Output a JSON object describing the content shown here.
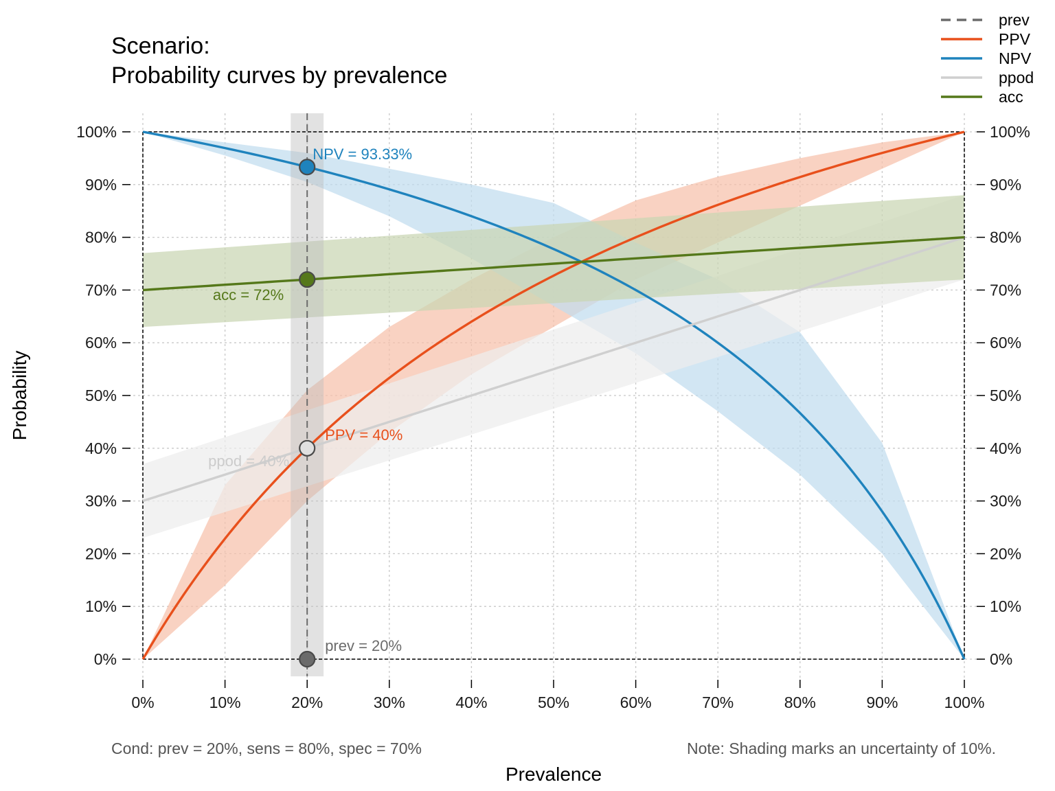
{
  "chart_data": {
    "type": "line",
    "title": "Scenario:",
    "subtitle": "Probability curves by prevalence",
    "xlabel": "Prevalence",
    "ylabel": "Probability",
    "xlim": [
      0,
      1
    ],
    "ylim": [
      0,
      1
    ],
    "grid": true,
    "legend_position": "top-right",
    "x_ticks": [
      "0%",
      "10%",
      "20%",
      "30%",
      "40%",
      "50%",
      "60%",
      "70%",
      "80%",
      "90%",
      "100%"
    ],
    "y_ticks": [
      "0%",
      "10%",
      "20%",
      "30%",
      "40%",
      "50%",
      "60%",
      "70%",
      "80%",
      "90%",
      "100%"
    ],
    "params": {
      "prev": 0.2,
      "sens": 0.8,
      "spec": 0.7,
      "uncertainty": 0.1
    },
    "legend": [
      {
        "name": "prev",
        "color": "#6b6b6b",
        "dash": true
      },
      {
        "name": "PPV",
        "color": "#e8501c",
        "dash": false
      },
      {
        "name": "NPV",
        "color": "#1f83bd",
        "dash": false
      },
      {
        "name": "ppod",
        "color": "#cfcfcf",
        "dash": false
      },
      {
        "name": "acc",
        "color": "#55781a",
        "dash": false
      }
    ],
    "series": [
      {
        "name": "PPV",
        "color": "#e8501c",
        "band_color": "#f7c0aa",
        "x": [
          0,
          0.1,
          0.2,
          0.3,
          0.4,
          0.5,
          0.6,
          0.7,
          0.8,
          0.9,
          1.0
        ],
        "values": [
          0,
          0.229,
          0.4,
          0.533,
          0.64,
          0.727,
          0.8,
          0.862,
          0.914,
          0.96,
          1.0
        ],
        "band_low": [
          0,
          0.14,
          0.3,
          0.43,
          0.54,
          0.63,
          0.72,
          0.79,
          0.86,
          0.93,
          1.0
        ],
        "band_high": [
          0,
          0.33,
          0.51,
          0.63,
          0.72,
          0.8,
          0.87,
          0.915,
          0.95,
          0.98,
          1.0
        ]
      },
      {
        "name": "NPV",
        "color": "#1f83bd",
        "band_color": "#c0dcee",
        "x": [
          0,
          0.1,
          0.2,
          0.3,
          0.4,
          0.5,
          0.6,
          0.7,
          0.8,
          0.9,
          1.0
        ],
        "values": [
          1.0,
          0.969,
          0.933,
          0.891,
          0.84,
          0.778,
          0.7,
          0.6,
          0.467,
          0.28,
          0
        ],
        "band_low": [
          1.0,
          0.955,
          0.905,
          0.84,
          0.76,
          0.67,
          0.58,
          0.47,
          0.35,
          0.2,
          0
        ],
        "band_high": [
          1.0,
          0.98,
          0.96,
          0.93,
          0.9,
          0.865,
          0.79,
          0.72,
          0.62,
          0.41,
          0
        ]
      },
      {
        "name": "ppod",
        "color": "#cfcfcf",
        "band_color": "#ededed",
        "x": [
          0,
          1
        ],
        "values": [
          0.3,
          0.8
        ],
        "band_low": [
          0.23,
          0.72
        ],
        "band_high": [
          0.37,
          0.88
        ]
      },
      {
        "name": "acc",
        "color": "#55781a",
        "band_color": "#c9d6b3",
        "x": [
          0,
          1
        ],
        "values": [
          0.7,
          0.8
        ],
        "band_low": [
          0.63,
          0.72
        ],
        "band_high": [
          0.77,
          0.88
        ]
      }
    ],
    "points": [
      {
        "name": "NPV",
        "x": 0.2,
        "y": 0.9333,
        "label": "NPV = 93.33%",
        "fill": "#1f83bd",
        "label_color": "#1f83bd"
      },
      {
        "name": "acc",
        "x": 0.2,
        "y": 0.72,
        "label": "acc = 72%",
        "fill": "#55781a",
        "label_color": "#55781a"
      },
      {
        "name": "PPV",
        "x": 0.2,
        "y": 0.4,
        "label": "PPV = 40%",
        "fill": "#e0e0e0",
        "label_color": "#e8501c"
      },
      {
        "name": "ppod",
        "x": 0.2,
        "y": 0.4,
        "label": "ppod = 40%",
        "fill": "#e0e0e0",
        "label_color": "#cccccc"
      },
      {
        "name": "prev",
        "x": 0.2,
        "y": 0,
        "label": "prev = 20%",
        "fill": "#6b6b6b",
        "label_color": "#6b6b6b"
      }
    ],
    "prev_band": [
      0.18,
      0.22
    ],
    "cond_note": "Cond:  prev = 20%, sens = 80%, spec = 70%",
    "shading_note": "Note:  Shading marks an uncertainty of 10%."
  }
}
